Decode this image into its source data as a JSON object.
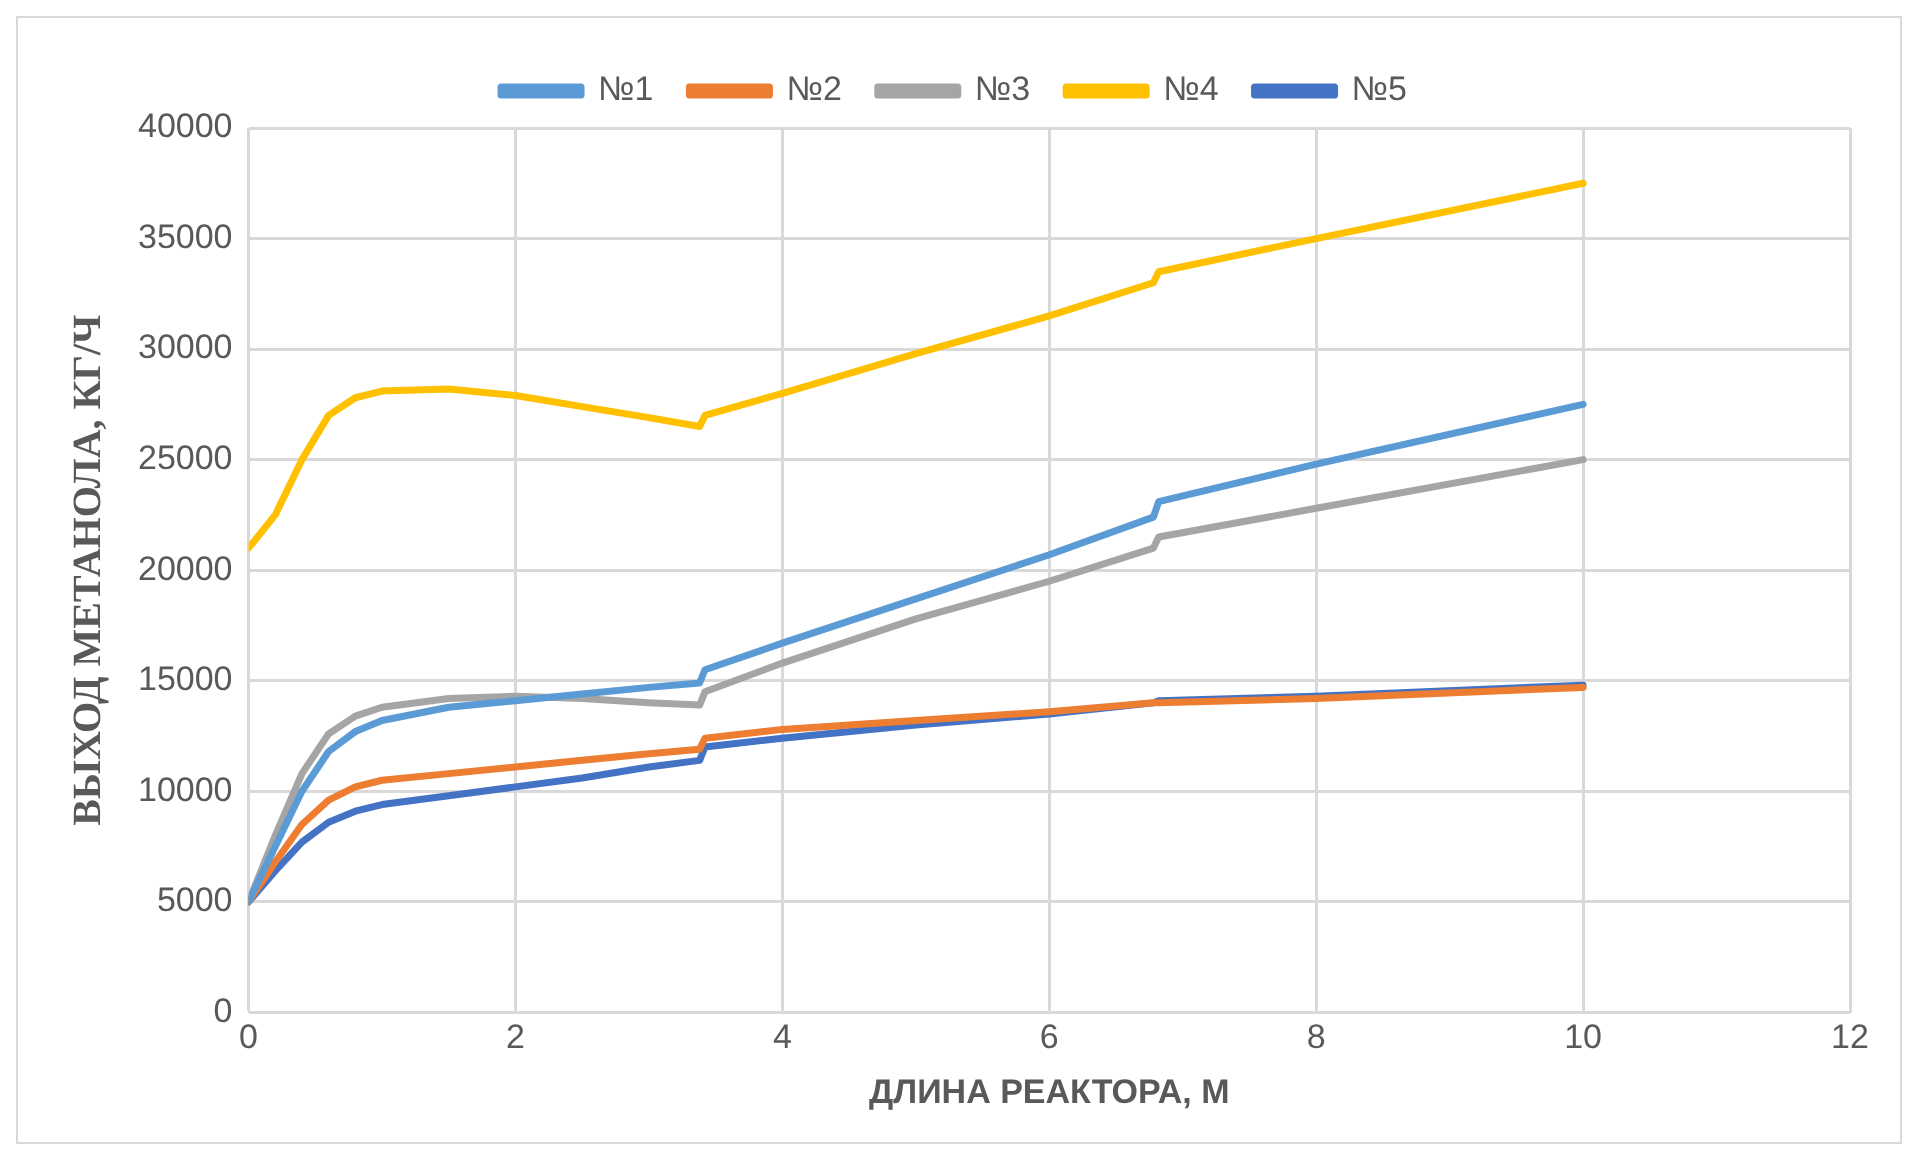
{
  "chart_data": {
    "type": "line",
    "xlabel": "ДЛИНА РЕАКТОРА, М",
    "ylabel": "ВЫХОД МЕТАНОЛА, КГ/Ч",
    "xlim": [
      0,
      12
    ],
    "xticks": [
      0,
      2,
      4,
      6,
      8,
      10,
      12
    ],
    "ylim": [
      0,
      40000
    ],
    "yticks": [
      0,
      5000,
      10000,
      15000,
      20000,
      25000,
      30000,
      35000,
      40000
    ],
    "grid": true,
    "legend": "top",
    "marker": "none",
    "line_style": "solid",
    "x": [
      0,
      0.2,
      0.4,
      0.6,
      0.8,
      1,
      1.5,
      2,
      2.5,
      3,
      3.38,
      3.42,
      4,
      5,
      6,
      6.78,
      6.82,
      8,
      10
    ],
    "series": [
      {
        "name": "№1",
        "color": "#5b9bd5",
        "values": [
          5000,
          7500,
          10000,
          11800,
          12700,
          13200,
          13800,
          14100,
          14400,
          14700,
          14900,
          15500,
          16700,
          18700,
          20700,
          22400,
          23100,
          24800,
          27500
        ]
      },
      {
        "name": "№2",
        "color": "#ed7d31",
        "values": [
          5000,
          6800,
          8500,
          9600,
          10200,
          10500,
          10800,
          11100,
          11400,
          11700,
          11900,
          12400,
          12800,
          13200,
          13600,
          14000,
          14000,
          14200,
          14700
        ]
      },
      {
        "name": "№3",
        "color": "#a5a5a5",
        "values": [
          5000,
          8000,
          10800,
          12600,
          13400,
          13800,
          14200,
          14300,
          14200,
          14000,
          13900,
          14500,
          15800,
          17800,
          19500,
          21000,
          21500,
          22800,
          25000
        ]
      },
      {
        "name": "№4",
        "color": "#ffc000",
        "values": [
          21000,
          22500,
          25000,
          27000,
          27800,
          28100,
          28200,
          27900,
          27400,
          26900,
          26500,
          27000,
          28000,
          29800,
          31500,
          33000,
          33500,
          35000,
          37500
        ]
      },
      {
        "name": "№5",
        "color": "#4472c4",
        "values": [
          5000,
          6400,
          7700,
          8600,
          9100,
          9400,
          9800,
          10200,
          10600,
          11100,
          11400,
          12000,
          12400,
          13000,
          13500,
          14000,
          14100,
          14300,
          14800
        ]
      }
    ]
  }
}
